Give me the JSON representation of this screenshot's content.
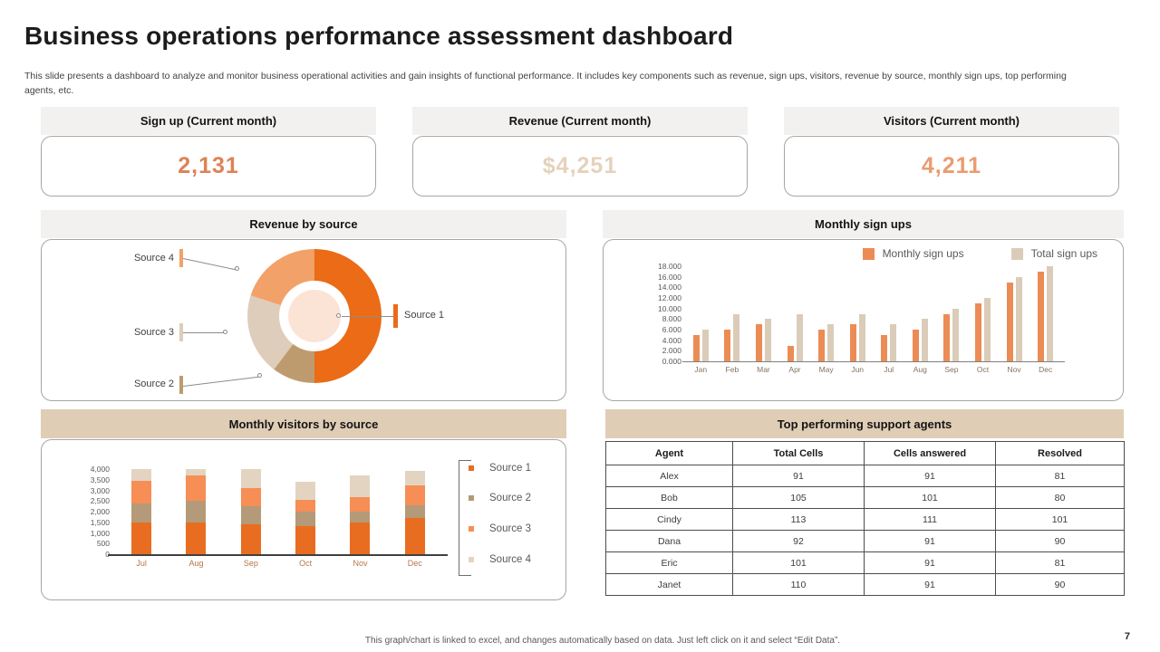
{
  "slide": {
    "title": "Business operations performance assessment dashboard",
    "description": "This slide presents a dashboard to analyze and monitor business operational activities and gain insights of functional performance. It includes key components such as revenue, sign ups, visitors, revenue by source, monthly sign ups, top performing agents, etc.",
    "footer_note": "This graph/chart is linked to excel, and changes automatically based on data. Just left click on it and select “Edit Data”.",
    "page_number": "7"
  },
  "kpi_cards": [
    {
      "title": "Sign up (Current month)",
      "value": "2,131",
      "value_color": "#DD8256"
    },
    {
      "title": "Revenue (Current month)",
      "value": "$4,251",
      "value_color": "#E5D2BC"
    },
    {
      "title": "Visitors (Current month)",
      "value": "4,211",
      "value_color": "#EA9C70"
    }
  ],
  "chart_data": [
    {
      "id": "revenue_by_source",
      "type": "pie",
      "title": "Revenue by source",
      "labels": [
        "Source 1",
        "Source 2",
        "Source 3",
        "Source 4"
      ],
      "values_pct": [
        50,
        10.3,
        19.7,
        20
      ],
      "colors": [
        "#EB6B16",
        "#BE9B6E",
        "#DECDBB",
        "#F2A169"
      ],
      "hole_color": "#FBE3D6",
      "legend_position": "callouts"
    },
    {
      "id": "monthly_sign_ups",
      "type": "bar",
      "title": "Monthly sign ups",
      "categories": [
        "Jan",
        "Feb",
        "Mar",
        "Apr",
        "May",
        "Jun",
        "Jul",
        "Aug",
        "Sep",
        "Oct",
        "Nov",
        "Dec"
      ],
      "series": [
        {
          "name": "Monthly sign ups",
          "color": "#EC8C55",
          "values": [
            5,
            6,
            7,
            3,
            6,
            7,
            5,
            6,
            9,
            11,
            15,
            17
          ]
        },
        {
          "name": "Total sign ups",
          "color": "#DACCB9",
          "values": [
            6,
            9,
            8,
            9,
            7,
            9,
            7,
            8,
            10,
            12,
            16,
            18
          ]
        }
      ],
      "ylim": [
        0,
        18
      ],
      "yticks": [
        "18.000",
        "16.000",
        "14.000",
        "12.000",
        "10.000",
        "8.000",
        "6.000",
        "4.000",
        "2.000",
        "0.000"
      ],
      "legend_position": "top-right",
      "grid": false
    },
    {
      "id": "monthly_visitors_by_source",
      "type": "bar",
      "stacked": true,
      "title": "Monthly visitors by source",
      "categories": [
        "Jul",
        "Aug",
        "Sep",
        "Oct",
        "Nov",
        "Dec"
      ],
      "series": [
        {
          "name": "Source 1",
          "color": "#E96D20",
          "values": [
            1500,
            1500,
            1400,
            1300,
            1500,
            1700
          ]
        },
        {
          "name": "Source 2",
          "color": "#B49A78",
          "values": [
            900,
            1000,
            850,
            700,
            500,
            600
          ]
        },
        {
          "name": "Source 3",
          "color": "#F68E55",
          "values": [
            1050,
            1200,
            850,
            550,
            700,
            950
          ]
        },
        {
          "name": "Source 4",
          "color": "#E3D4C2",
          "values": [
            550,
            300,
            900,
            850,
            1000,
            650
          ]
        }
      ],
      "ylim": [
        0,
        4000
      ],
      "yticks": [
        "4,000",
        "3,500",
        "3,000",
        "2,500",
        "2,000",
        "1,500",
        "1,000",
        "500",
        "0"
      ],
      "legend_position": "right",
      "grid": false
    },
    {
      "id": "top_agents",
      "type": "table",
      "title": "Top performing support agents",
      "columns": [
        "Agent",
        "Total Cells",
        "Cells answered",
        "Resolved"
      ],
      "rows": [
        [
          "Alex",
          "91",
          "91",
          "81"
        ],
        [
          "Bob",
          "105",
          "101",
          "80"
        ],
        [
          "Cindy",
          "113",
          "111",
          "101"
        ],
        [
          "Dana",
          "92",
          "91",
          "90"
        ],
        [
          "Eric",
          "101",
          "91",
          "81"
        ],
        [
          "Janet",
          "110",
          "91",
          "90"
        ]
      ]
    }
  ]
}
